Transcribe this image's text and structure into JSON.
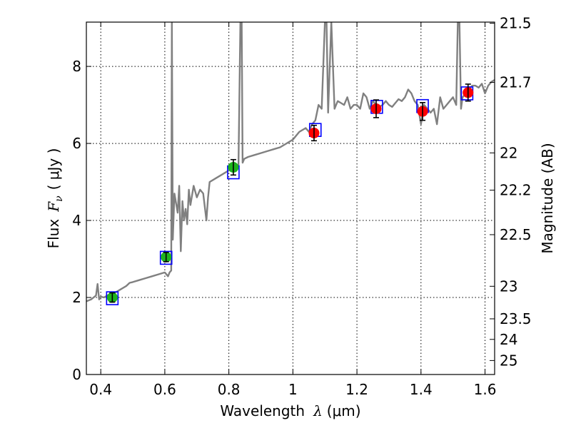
{
  "chart_data": {
    "type": "scatter",
    "xlabel_text": "Wavelength",
    "xlabel_symbol": "λ",
    "xlabel_unit": "(μm)",
    "ylabel_text": "Flux",
    "ylabel_symbol": "F",
    "ylabel_subscript": "ν",
    "ylabel_unit": "( μJy )",
    "y2label": "Magnitude (AB)",
    "xlim": [
      0.355,
      1.63
    ],
    "ylim": [
      0,
      9.15
    ],
    "x_ticks": [
      0.4,
      0.6,
      0.8,
      1.0,
      1.2,
      1.4,
      1.6
    ],
    "x_tick_labels": [
      "0.4",
      "0.6",
      "0.8",
      "1",
      "1.2",
      "1.4",
      "1.6"
    ],
    "y_ticks": [
      0,
      2,
      4,
      6,
      8
    ],
    "y_tick_labels": [
      "0",
      "2",
      "4",
      "6",
      "8"
    ],
    "mag_ticks": [
      21.5,
      21.7,
      22,
      22.2,
      22.5,
      23,
      23.5,
      24,
      25
    ],
    "mag_tick_labels": [
      "21.5",
      "21.7",
      "22",
      "22.2",
      "22.5",
      "23",
      "23.5",
      "24",
      "25"
    ],
    "grid": true,
    "colors": {
      "spectrum": "#808080",
      "optical": "#1db31d",
      "nir": "#ff0000",
      "model_box": "#0000ff",
      "errorbar": "#000000"
    },
    "model_points": [
      {
        "x": 0.436,
        "y": 1.98
      },
      {
        "x": 0.604,
        "y": 3.03
      },
      {
        "x": 0.814,
        "y": 5.25
      },
      {
        "x": 1.07,
        "y": 6.35
      },
      {
        "x": 1.262,
        "y": 6.95
      },
      {
        "x": 1.405,
        "y": 6.97
      },
      {
        "x": 1.544,
        "y": 7.3
      }
    ],
    "observed_points": [
      {
        "x": 0.436,
        "y": 2.0,
        "err": 0.12,
        "group": "optical"
      },
      {
        "x": 0.604,
        "y": 3.05,
        "err": 0.12,
        "group": "optical"
      },
      {
        "x": 0.814,
        "y": 5.38,
        "err": 0.2,
        "group": "optical"
      },
      {
        "x": 1.066,
        "y": 6.27,
        "err": 0.2,
        "group": "nir"
      },
      {
        "x": 1.26,
        "y": 6.9,
        "err": 0.23,
        "group": "nir"
      },
      {
        "x": 1.405,
        "y": 6.83,
        "err": 0.23,
        "group": "nir"
      },
      {
        "x": 1.547,
        "y": 7.32,
        "err": 0.22,
        "group": "nir"
      }
    ],
    "spectrum": {
      "x": [
        0.355,
        0.37,
        0.385,
        0.39,
        0.395,
        0.4,
        0.41,
        0.42,
        0.43,
        0.44,
        0.45,
        0.46,
        0.47,
        0.48,
        0.49,
        0.5,
        0.52,
        0.54,
        0.56,
        0.58,
        0.6,
        0.61,
        0.615,
        0.62,
        0.622,
        0.625,
        0.63,
        0.64,
        0.645,
        0.65,
        0.655,
        0.66,
        0.665,
        0.67,
        0.675,
        0.68,
        0.69,
        0.7,
        0.71,
        0.72,
        0.73,
        0.735,
        0.74,
        0.76,
        0.78,
        0.8,
        0.82,
        0.83,
        0.836,
        0.84,
        0.843,
        0.848,
        0.86,
        0.88,
        0.9,
        0.92,
        0.94,
        0.96,
        0.98,
        1.0,
        1.02,
        1.04,
        1.05,
        1.06,
        1.07,
        1.08,
        1.09,
        1.1,
        1.105,
        1.11,
        1.12,
        1.13,
        1.135,
        1.14,
        1.15,
        1.16,
        1.17,
        1.18,
        1.19,
        1.2,
        1.21,
        1.22,
        1.23,
        1.24,
        1.25,
        1.26,
        1.27,
        1.28,
        1.29,
        1.3,
        1.31,
        1.32,
        1.33,
        1.34,
        1.35,
        1.36,
        1.37,
        1.38,
        1.39,
        1.4,
        1.41,
        1.42,
        1.43,
        1.44,
        1.45,
        1.46,
        1.47,
        1.48,
        1.49,
        1.5,
        1.51,
        1.515,
        1.52,
        1.525,
        1.53,
        1.54,
        1.55,
        1.56,
        1.57,
        1.58,
        1.59,
        1.6,
        1.61,
        1.62,
        1.63
      ],
      "y": [
        1.9,
        1.95,
        2.05,
        2.35,
        1.95,
        2.02,
        2.0,
        2.05,
        2.08,
        2.1,
        2.15,
        2.2,
        2.25,
        2.3,
        2.38,
        2.4,
        2.45,
        2.5,
        2.55,
        2.6,
        2.65,
        2.55,
        2.65,
        2.7,
        9.15,
        3.5,
        4.7,
        4.2,
        4.9,
        3.2,
        4.5,
        4.0,
        4.3,
        3.9,
        4.8,
        4.4,
        4.9,
        4.6,
        4.8,
        4.7,
        4.0,
        4.6,
        5.0,
        5.1,
        5.2,
        5.3,
        5.35,
        5.4,
        9.15,
        9.15,
        5.5,
        5.6,
        5.65,
        5.7,
        5.75,
        5.8,
        5.85,
        5.9,
        6.0,
        6.1,
        6.3,
        6.4,
        6.3,
        6.5,
        6.6,
        7.0,
        6.9,
        9.15,
        9.15,
        6.8,
        9.15,
        6.9,
        7.0,
        7.1,
        7.05,
        7.0,
        7.2,
        6.9,
        7.0,
        7.0,
        6.9,
        7.3,
        7.2,
        6.9,
        7.1,
        7.0,
        6.95,
        7.0,
        7.1,
        7.0,
        6.95,
        7.05,
        7.15,
        7.1,
        7.2,
        7.4,
        7.3,
        7.1,
        7.0,
        6.5,
        7.0,
        6.9,
        6.8,
        6.9,
        6.5,
        7.2,
        6.9,
        7.0,
        7.1,
        7.2,
        7.0,
        9.15,
        9.15,
        6.9,
        7.2,
        7.3,
        7.4,
        7.5,
        7.5,
        7.45,
        7.55,
        7.3,
        7.5,
        7.6,
        7.65
      ]
    }
  }
}
